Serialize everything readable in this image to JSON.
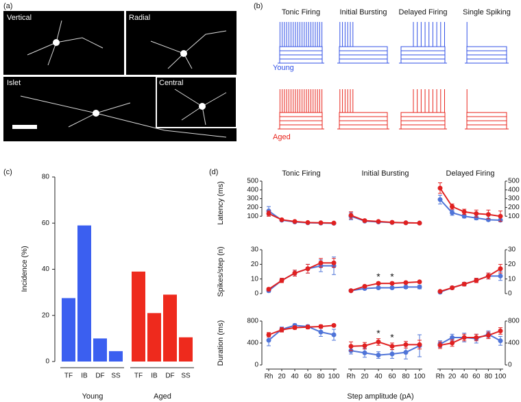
{
  "panel_labels": [
    "(a)",
    "(b)",
    "(c)",
    "(d)"
  ],
  "images": [
    {
      "label": "Vertical"
    },
    {
      "label": "Radial"
    },
    {
      "label": "Islet"
    },
    {
      "label": "Central"
    }
  ],
  "traces": {
    "titles": [
      "Tonic Firing",
      "Initial Bursting",
      "Delayed Firing",
      "Single Spiking"
    ],
    "groups": [
      {
        "label": "Young",
        "color": "#2f4fe6"
      },
      {
        "label": "Aged",
        "color": "#e8231b"
      }
    ]
  },
  "shared_x_label": "Step amplitude (pA)",
  "chart_data": [
    {
      "type": "bar",
      "y_label": "Incidence (%)",
      "categories": [
        "TF",
        "IB",
        "DF",
        "SS"
      ],
      "series": [
        {
          "name": "Young",
          "color": "#3b5ff0",
          "values": [
            27.5,
            59,
            10,
            4.5
          ]
        },
        {
          "name": "Aged",
          "color": "#ee2a1d",
          "values": [
            39,
            21,
            29,
            10.5
          ]
        }
      ],
      "ylim": [
        0,
        80
      ],
      "yticks": [
        0,
        20,
        40,
        60,
        80
      ]
    },
    {
      "type": "line",
      "title": "Tonic Firing",
      "y_label": "Latency (ms)",
      "ylim": [
        0,
        500
      ],
      "yticks": [
        100,
        200,
        300,
        400,
        500
      ],
      "series": [
        {
          "color": "#4f74d8",
          "values": [
            160,
            55,
            35,
            25,
            22,
            20
          ],
          "errors": [
            50,
            10,
            6,
            4,
            4,
            3
          ]
        },
        {
          "color": "#e02020",
          "values": [
            130,
            60,
            40,
            28,
            25,
            22
          ],
          "errors": [
            30,
            10,
            6,
            4,
            3,
            3
          ]
        }
      ]
    },
    {
      "type": "line",
      "title": "Initial Bursting",
      "ylim": [
        0,
        500
      ],
      "series": [
        {
          "color": "#4f74d8",
          "values": [
            100,
            45,
            35,
            28,
            25,
            22
          ],
          "errors": [
            40,
            10,
            6,
            5,
            4,
            3
          ]
        },
        {
          "color": "#e02020",
          "values": [
            110,
            50,
            40,
            30,
            25,
            22
          ],
          "errors": [
            40,
            10,
            6,
            5,
            4,
            3
          ]
        }
      ]
    },
    {
      "type": "line",
      "title": "Delayed Firing",
      "ylim": [
        0,
        500
      ],
      "yticks": [
        100,
        200,
        300,
        400,
        500
      ],
      "series": [
        {
          "color": "#4f74d8",
          "values": [
            290,
            140,
            100,
            80,
            60,
            55
          ],
          "errors": [
            50,
            30,
            20,
            20,
            15,
            15
          ]
        },
        {
          "color": "#e02020",
          "values": [
            420,
            210,
            150,
            130,
            120,
            100
          ],
          "errors": [
            60,
            30,
            30,
            40,
            50,
            60
          ]
        }
      ]
    },
    {
      "type": "line",
      "y_label": "Spikes/step (n)",
      "ylim": [
        0,
        30
      ],
      "yticks": [
        0,
        10,
        20,
        30
      ],
      "series": [
        {
          "color": "#4f74d8",
          "values": [
            2,
            9,
            14,
            17,
            19,
            19
          ],
          "errors": [
            1,
            1.5,
            2,
            3,
            4,
            6
          ]
        },
        {
          "color": "#e02020",
          "values": [
            3,
            9,
            14,
            17,
            21,
            21
          ],
          "errors": [
            1,
            1.5,
            2,
            3,
            3,
            3
          ]
        }
      ]
    },
    {
      "type": "line",
      "ylim": [
        0,
        30
      ],
      "series": [
        {
          "color": "#4f74d8",
          "values": [
            2,
            3.5,
            4,
            4,
            4.5,
            4.5
          ],
          "errors": [
            0.5,
            0.8,
            0.8,
            0.8,
            1,
            1.2
          ]
        },
        {
          "color": "#e02020",
          "values": [
            2,
            5,
            7,
            7,
            7.5,
            8
          ],
          "errors": [
            0.5,
            0.8,
            0.8,
            0.8,
            0.8,
            0.8
          ]
        }
      ],
      "annotations": [
        {
          "text": "*",
          "x": "40"
        },
        {
          "text": "*",
          "x": "60"
        }
      ]
    },
    {
      "type": "line",
      "ylim": [
        0,
        30
      ],
      "yticks": [
        0,
        10,
        20,
        30
      ],
      "series": [
        {
          "color": "#4f74d8",
          "values": [
            1,
            4,
            6.5,
            9,
            12,
            12
          ],
          "errors": [
            0.8,
            1,
            1.2,
            1.5,
            2,
            3
          ]
        },
        {
          "color": "#e02020",
          "values": [
            1.5,
            4,
            6.5,
            9,
            12,
            17
          ],
          "errors": [
            0.8,
            1,
            1.2,
            1.5,
            2,
            3
          ]
        }
      ]
    },
    {
      "type": "line",
      "y_label": "Duration (ms)",
      "ylim": [
        0,
        800
      ],
      "yticks": [
        0,
        400,
        800
      ],
      "categories": [
        "Rh",
        "20",
        "40",
        "60",
        "80",
        "100"
      ],
      "series": [
        {
          "color": "#4f74d8",
          "values": [
            450,
            650,
            720,
            700,
            600,
            550
          ],
          "errors": [
            100,
            40,
            30,
            30,
            80,
            100
          ]
        },
        {
          "color": "#e02020",
          "values": [
            550,
            640,
            680,
            690,
            700,
            720
          ],
          "errors": [
            40,
            40,
            30,
            30,
            30,
            20
          ]
        }
      ]
    },
    {
      "type": "line",
      "ylim": [
        0,
        800
      ],
      "categories": [
        "Rh",
        "20",
        "40",
        "60",
        "80",
        "100"
      ],
      "series": [
        {
          "color": "#4f74d8",
          "values": [
            260,
            220,
            180,
            200,
            230,
            350
          ],
          "errors": [
            60,
            80,
            60,
            80,
            120,
            200
          ]
        },
        {
          "color": "#e02020",
          "values": [
            340,
            350,
            420,
            340,
            370,
            370
          ],
          "errors": [
            80,
            60,
            60,
            60,
            60,
            80
          ]
        }
      ],
      "annotations": [
        {
          "text": "*",
          "x": "40"
        },
        {
          "text": "*",
          "x": "60"
        }
      ]
    },
    {
      "type": "line",
      "ylim": [
        0,
        800
      ],
      "yticks": [
        0,
        400,
        800
      ],
      "categories": [
        "Rh",
        "20",
        "40",
        "60",
        "80",
        "100"
      ],
      "series": [
        {
          "color": "#4f74d8",
          "values": [
            380,
            500,
            500,
            480,
            560,
            440
          ],
          "errors": [
            60,
            60,
            80,
            80,
            60,
            80
          ]
        },
        {
          "color": "#e02020",
          "values": [
            360,
            400,
            500,
            500,
            540,
            620
          ],
          "errors": [
            60,
            60,
            60,
            60,
            60,
            60
          ]
        }
      ]
    }
  ]
}
